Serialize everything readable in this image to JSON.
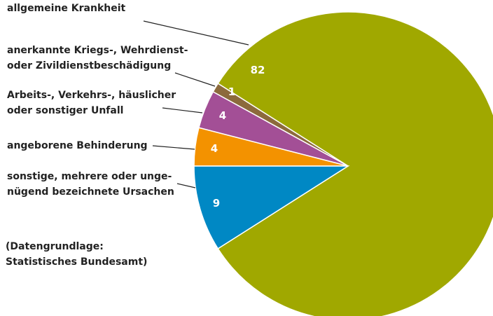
{
  "chart_data": {
    "type": "pie",
    "categories": [
      "allgemeine Krankheit",
      "anerkannte Kriegs-, Wehrdienst-\noder Zivildienstbeschädigung",
      "Arbeits-, Verkehrs-, häuslicher\noder sonstiger Unfall",
      "angeborene Behinderung",
      "sonstige, mehrere oder unge-\nnügend bezeichnete Ursachen"
    ],
    "values": [
      82,
      1,
      4,
      4,
      9
    ],
    "colors": [
      "#a0a800",
      "#8c6a3c",
      "#a34f96",
      "#f39200",
      "#0088c4"
    ],
    "note": "(Datengrundlage:\nStatistisches Bundesamt)"
  }
}
